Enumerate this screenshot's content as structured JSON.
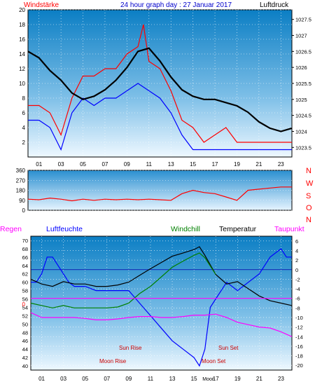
{
  "chart_data": [
    {
      "type": "line",
      "title": "24 hour graph day : 27 Januar 2017",
      "left_axis_title": "Windstärke",
      "right_axis_title": "Luftdruck",
      "x_ticks": [
        "01",
        "03",
        "05",
        "07",
        "09",
        "11",
        "13",
        "15",
        "17",
        "19",
        "21",
        "23"
      ],
      "left_ticks": [
        "2",
        "4",
        "6",
        "8",
        "10",
        "12",
        "14",
        "16",
        "18",
        "20"
      ],
      "right_ticks": [
        "1023.5",
        "1024",
        "1024.5",
        "1025",
        "1025.5",
        "1026",
        "1026.5",
        "1027",
        "1027.5"
      ],
      "series": [
        {
          "name": "wind_gust",
          "color": "#ff0000",
          "axis": "left",
          "x": [
            0,
            1,
            2,
            3,
            4,
            5,
            6,
            7,
            8,
            9,
            10,
            10.5,
            11,
            12,
            13,
            14,
            15,
            16,
            17,
            18,
            19,
            20,
            21,
            22,
            23,
            24
          ],
          "y": [
            7,
            7,
            6,
            3,
            8,
            11,
            11,
            12,
            12,
            14,
            15,
            18,
            13,
            12,
            9,
            5,
            4,
            2,
            3,
            4,
            2,
            2,
            2,
            2,
            2,
            2
          ]
        },
        {
          "name": "wind_avg",
          "color": "#0000ff",
          "axis": "left",
          "x": [
            0,
            1,
            2,
            3,
            4,
            5,
            6,
            7,
            8,
            9,
            10,
            11,
            12,
            13,
            14,
            15,
            16,
            17,
            18,
            19,
            20,
            21,
            22,
            23,
            24
          ],
          "y": [
            5,
            5,
            4,
            1,
            6,
            8,
            7,
            8,
            8,
            9,
            10,
            9,
            8,
            6,
            3,
            1,
            1,
            1,
            1,
            1,
            1,
            1,
            1,
            1,
            1
          ]
        },
        {
          "name": "pressure",
          "color": "#000000",
          "axis": "right",
          "x": [
            0,
            1,
            2,
            3,
            4,
            5,
            6,
            7,
            8,
            9,
            10,
            11,
            12,
            13,
            14,
            15,
            16,
            17,
            18,
            19,
            20,
            21,
            22,
            23,
            24
          ],
          "y": [
            1026.5,
            1026.3,
            1025.9,
            1025.6,
            1025.2,
            1025.0,
            1025.1,
            1025.3,
            1025.6,
            1026.0,
            1026.5,
            1026.6,
            1026.2,
            1025.7,
            1025.3,
            1025.1,
            1025.0,
            1025.0,
            1024.9,
            1024.8,
            1024.6,
            1024.3,
            1024.1,
            1024.0,
            1024.1
          ]
        }
      ],
      "left_range": [
        0,
        20
      ],
      "right_range": [
        1023.2,
        1027.8
      ]
    },
    {
      "type": "line",
      "left_ticks": [
        "0",
        "90",
        "180",
        "270",
        "360"
      ],
      "right_labels": [
        "N",
        "W",
        "S",
        "O",
        "N"
      ],
      "series": [
        {
          "name": "wind_direction",
          "color": "#ff0000",
          "x": [
            0,
            1,
            2,
            3,
            4,
            5,
            6,
            7,
            8,
            9,
            10,
            11,
            12,
            13,
            14,
            15,
            16,
            17,
            18,
            19,
            20,
            21,
            22,
            23,
            24
          ],
          "y": [
            100,
            95,
            110,
            100,
            85,
            100,
            90,
            100,
            95,
            100,
            95,
            100,
            95,
            90,
            150,
            180,
            160,
            150,
            120,
            90,
            180,
            190,
            200,
            210,
            210
          ]
        }
      ],
      "range": [
        0,
        360
      ]
    },
    {
      "type": "line",
      "legend": [
        "Regen",
        "Luftfeuchte",
        "Windchill",
        "Temperatur",
        "Taupunkt"
      ],
      "left_ticks": [
        "40",
        "42",
        "44",
        "46",
        "48",
        "50",
        "52",
        "54",
        "56",
        "58",
        "60",
        "62",
        "64",
        "66",
        "68",
        "70"
      ],
      "right_ticks": [
        "6",
        "4",
        "2",
        "0",
        "-2",
        "-4",
        "-6",
        "-8",
        "-10",
        "-12",
        "-14",
        "-16",
        "-18",
        "-20"
      ],
      "zero_label": "0",
      "series": [
        {
          "name": "Luftfeuchte",
          "color": "#0000ff",
          "axis": "left",
          "x": [
            0,
            0.5,
            1,
            1.5,
            2,
            2.5,
            3,
            3.5,
            4,
            5,
            6,
            7,
            8,
            9,
            10,
            11,
            12,
            13,
            14,
            15,
            15.5,
            16,
            16.5,
            17,
            17.5,
            18,
            19,
            20,
            21,
            22,
            23,
            23.5,
            24
          ],
          "y": [
            60,
            60,
            62,
            66,
            66,
            64,
            62,
            60,
            59,
            59,
            58,
            58,
            58,
            58,
            55,
            52,
            49,
            46,
            44,
            42,
            40,
            44,
            54,
            56,
            58,
            60,
            58,
            60,
            62,
            66,
            68,
            66,
            66
          ]
        },
        {
          "name": "Temperatur",
          "color": "#000000",
          "axis": "right",
          "x": [
            0,
            1,
            2,
            3,
            4,
            5,
            6,
            7,
            8,
            9,
            10,
            11,
            12,
            13,
            14,
            15,
            15.5,
            16,
            17,
            18,
            19,
            20,
            21,
            22,
            23,
            24
          ],
          "y": [
            -2,
            -3,
            -3.5,
            -2.5,
            -3,
            -3,
            -3.5,
            -3.5,
            -3.2,
            -2.6,
            -1.2,
            0.2,
            1.5,
            2.8,
            3.5,
            4.2,
            4.8,
            3,
            -1,
            -3,
            -2.5,
            -4,
            -5.5,
            -6.5,
            -7,
            -7.5
          ]
        },
        {
          "name": "Windchill",
          "color": "#008000",
          "axis": "right",
          "x": [
            0,
            1,
            2,
            3,
            4,
            5,
            6,
            7,
            8,
            9,
            10,
            11,
            12,
            13,
            14,
            15,
            15.5,
            16,
            17
          ],
          "y": [
            -7,
            -7.5,
            -8,
            -7.5,
            -8,
            -8,
            -8,
            -8,
            -7.8,
            -7,
            -5,
            -3.5,
            -1.5,
            0.5,
            1.8,
            3.0,
            3.5,
            2.5,
            -1
          ]
        },
        {
          "name": "Taupunkt",
          "color": "#ff00ff",
          "axis": "right",
          "x": [
            0,
            1,
            2,
            3,
            4,
            5,
            6,
            7,
            8,
            9,
            10,
            11,
            12,
            13,
            14,
            15,
            16,
            17,
            18,
            19,
            20,
            21,
            22,
            23,
            24
          ],
          "y": [
            -9,
            -10,
            -10,
            -10,
            -10,
            -10.2,
            -10.5,
            -10.5,
            -10.3,
            -10,
            -9.8,
            -9.8,
            -10,
            -10,
            -9.8,
            -9.5,
            -9.5,
            -9.3,
            -10,
            -11,
            -11.5,
            -12,
            -12.2,
            -13,
            -14
          ]
        },
        {
          "name": "Regen",
          "color": "#ff00ff",
          "axis": "right",
          "x": [
            0,
            24
          ],
          "y": [
            -6,
            -6
          ]
        }
      ],
      "left_range": [
        39,
        71
      ],
      "right_range": [
        -21,
        7
      ],
      "annotations": [
        "Sun Rise",
        "Moon Rise",
        "Sun Set",
        "Moon Set"
      ],
      "x_ticks": [
        "01",
        "03",
        "05",
        "07",
        "09",
        "11",
        "13",
        "15",
        "17",
        "19",
        "21",
        "23"
      ],
      "x_tick_special": "Moon"
    }
  ]
}
